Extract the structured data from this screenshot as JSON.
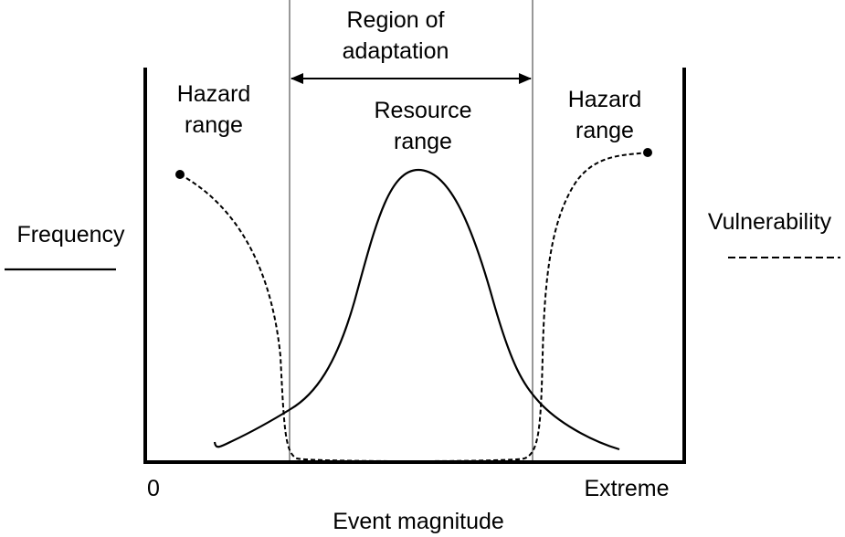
{
  "colors": {
    "ink": "#000000",
    "guide": "#555555",
    "background": "#ffffff"
  },
  "labels": {
    "region_line1": "Region of",
    "region_line2": "adaptation",
    "hazard_left_line1": "Hazard",
    "hazard_left_line2": "range",
    "resource_line1": "Resource",
    "resource_line2": "range",
    "hazard_right_line1": "Hazard",
    "hazard_right_line2": "range",
    "frequency": "Frequency",
    "vulnerability": "Vulnerability",
    "x_axis_start": "0",
    "x_axis_end": "Extreme",
    "x_axis_title": "Event magnitude"
  },
  "legend": {
    "frequency_style": "solid",
    "vulnerability_style": "dashed"
  },
  "curves": {
    "frequency": "bell-shaped",
    "vulnerability": "U-shaped"
  }
}
